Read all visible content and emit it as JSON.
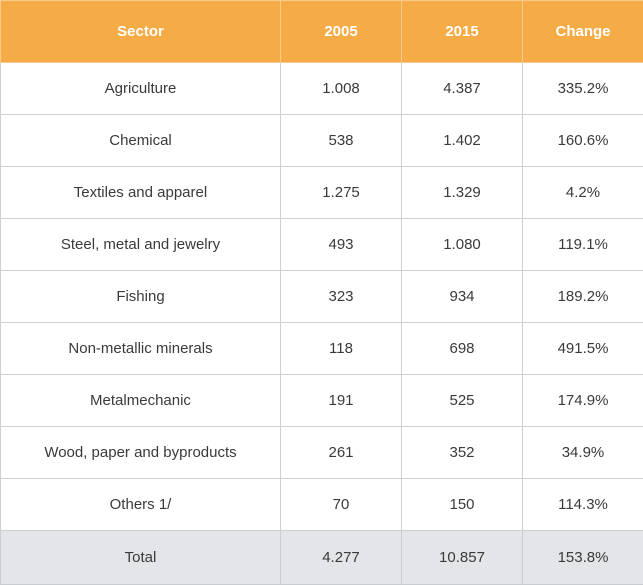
{
  "chart_data": {
    "type": "table",
    "columns": [
      "Sector",
      "2005",
      "2015",
      "Change"
    ],
    "rows": [
      [
        "Agriculture",
        "1.008",
        "4.387",
        "335.2%"
      ],
      [
        "Chemical",
        "538",
        "1.402",
        "160.6%"
      ],
      [
        "Textiles and apparel",
        "1.275",
        "1.329",
        "4.2%"
      ],
      [
        "Steel, metal and jewelry",
        "493",
        "1.080",
        "119.1%"
      ],
      [
        "Fishing",
        "323",
        "934",
        "189.2%"
      ],
      [
        "Non-metallic minerals",
        "118",
        "698",
        "491.5%"
      ],
      [
        "Metalmechanic",
        "191",
        "525",
        "174.9%"
      ],
      [
        "Wood, paper and byproducts",
        "261",
        "352",
        "34.9%"
      ],
      [
        "Others 1/",
        "70",
        "150",
        "114.3%"
      ]
    ],
    "total": [
      "Total",
      "4.277",
      "10.857",
      "153.8%"
    ],
    "colors": {
      "header_bg": "#f5ac46",
      "header_text": "#ffffff",
      "total_bg": "#e3e5e8",
      "body_text": "#3a3a3a"
    }
  }
}
